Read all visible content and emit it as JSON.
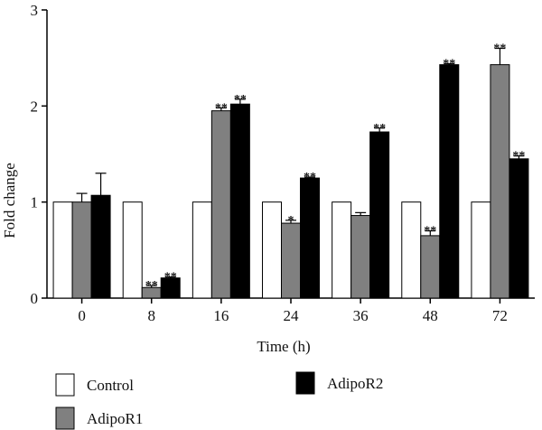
{
  "chart_data": {
    "type": "bar",
    "categories": [
      "0",
      "8",
      "16",
      "24",
      "36",
      "48",
      "72"
    ],
    "xlabel": "Time (h)",
    "ylabel": "Fold change",
    "ylim": [
      0,
      3
    ],
    "yticks": [
      0,
      1,
      2,
      3
    ],
    "series": [
      {
        "name": "Control",
        "color": "#ffffff",
        "values": [
          1.0,
          1.0,
          1.0,
          1.0,
          1.0,
          1.0,
          1.0
        ],
        "errors": [
          0,
          0,
          0,
          0,
          0,
          0,
          0
        ],
        "annotations": [
          "",
          "",
          "",
          "",
          "",
          "",
          ""
        ]
      },
      {
        "name": "AdipoR1",
        "color": "#808080",
        "values": [
          1.0,
          0.11,
          1.95,
          0.78,
          0.86,
          0.65,
          2.43
        ],
        "errors": [
          0.09,
          0.02,
          0.03,
          0.03,
          0.03,
          0.05,
          0.17
        ],
        "annotations": [
          "",
          "**",
          "**",
          "*",
          "",
          "**",
          "**"
        ]
      },
      {
        "name": "AdipoR2",
        "color": "#000000",
        "values": [
          1.07,
          0.21,
          2.02,
          1.25,
          1.73,
          2.43,
          1.45
        ],
        "errors": [
          0.23,
          0.01,
          0.05,
          0.01,
          0.04,
          0.01,
          0.03
        ],
        "annotations": [
          "",
          "**",
          "**",
          "**",
          "**",
          "**",
          "**"
        ]
      }
    ],
    "legend": [
      "Control",
      "AdipoR1",
      "AdipoR2"
    ],
    "grid": false,
    "legend_position": "bottom"
  }
}
